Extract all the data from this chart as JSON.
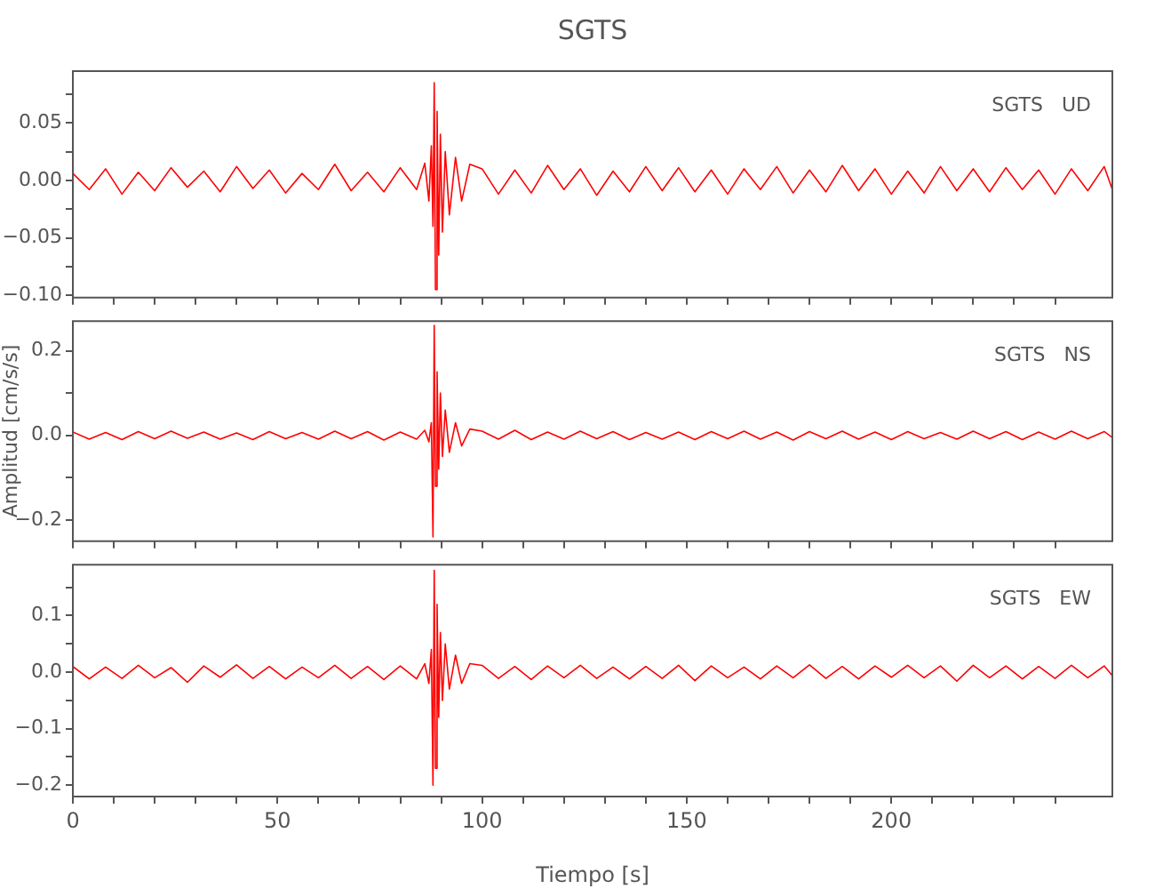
{
  "chart_data": [
    {
      "type": "line",
      "title": "SGTS",
      "annotations": [
        "SGTS   UD"
      ],
      "tick_labels": "y",
      "grid": false,
      "legend": false,
      "marker": "none",
      "line_style": "solid",
      "x": [
        0,
        4,
        8,
        12,
        16,
        20,
        24,
        28,
        32,
        36,
        40,
        44,
        48,
        52,
        56,
        60,
        64,
        68,
        72,
        76,
        80,
        84,
        86,
        87,
        87.6,
        88,
        88.3,
        88.6,
        89,
        89.4,
        89.8,
        90.3,
        91,
        92,
        93.5,
        95,
        97,
        100,
        104,
        108,
        112,
        116,
        120,
        124,
        128,
        132,
        136,
        140,
        144,
        148,
        152,
        156,
        160,
        164,
        168,
        172,
        176,
        180,
        184,
        188,
        192,
        196,
        200,
        204,
        208,
        212,
        216,
        220,
        224,
        228,
        232,
        236,
        240,
        244,
        248,
        252,
        254
      ],
      "xlim": [
        0,
        254
      ],
      "xticks": [
        0,
        {
          "value": 10,
          "label": null
        },
        {
          "value": 20,
          "label": null
        },
        {
          "value": 30,
          "label": null
        },
        {
          "value": 40,
          "label": null
        },
        50,
        {
          "value": 60,
          "label": null
        },
        {
          "value": 70,
          "label": null
        },
        {
          "value": 80,
          "label": null
        },
        {
          "value": 90,
          "label": null
        },
        100,
        {
          "value": 110,
          "label": null
        },
        {
          "value": 120,
          "label": null
        },
        {
          "value": 130,
          "label": null
        },
        {
          "value": 140,
          "label": null
        },
        150,
        {
          "value": 160,
          "label": null
        },
        {
          "value": 170,
          "label": null
        },
        {
          "value": 180,
          "label": null
        },
        {
          "value": 190,
          "label": null
        },
        200,
        {
          "value": 210,
          "label": null
        },
        {
          "value": 220,
          "label": null
        },
        {
          "value": 230,
          "label": null
        },
        {
          "value": 240,
          "label": null
        }
      ],
      "ylim": [
        -0.102,
        0.095
      ],
      "yticks": [
        {
          "value": -0.1,
          "label": "−0.10"
        },
        {
          "value": -0.075,
          "label": null
        },
        {
          "value": -0.05,
          "label": "−0.05"
        },
        {
          "value": -0.025,
          "label": null
        },
        {
          "value": 0,
          "label": "0.00"
        },
        {
          "value": 0.025,
          "label": null
        },
        {
          "value": 0.05,
          "label": "0.05"
        },
        {
          "value": 0.075,
          "label": null
        }
      ],
      "series": [
        {
          "color": "#ff0000",
          "values": [
            0.006,
            -0.008,
            0.01,
            -0.012,
            0.007,
            -0.009,
            0.011,
            -0.006,
            0.008,
            -0.01,
            0.012,
            -0.007,
            0.009,
            -0.011,
            0.006,
            -0.008,
            0.014,
            -0.009,
            0.007,
            -0.01,
            0.011,
            -0.008,
            0.015,
            -0.018,
            0.03,
            -0.04,
            0.085,
            -0.095,
            0.06,
            -0.065,
            0.04,
            -0.045,
            0.025,
            -0.03,
            0.02,
            -0.018,
            0.014,
            0.01,
            -0.012,
            0.009,
            -0.011,
            0.013,
            -0.008,
            0.01,
            -0.013,
            0.008,
            -0.01,
            0.012,
            -0.009,
            0.011,
            -0.01,
            0.009,
            -0.012,
            0.01,
            -0.008,
            0.012,
            -0.011,
            0.009,
            -0.01,
            0.013,
            -0.009,
            0.01,
            -0.012,
            0.008,
            -0.011,
            0.012,
            -0.009,
            0.01,
            -0.01,
            0.011,
            -0.008,
            0.009,
            -0.012,
            0.01,
            -0.009,
            0.012,
            -0.008
          ]
        }
      ]
    },
    {
      "type": "line",
      "ylabel": "Amplitud [cm/s/s]",
      "annotations": [
        "SGTS   NS"
      ],
      "tick_labels": "y",
      "grid": false,
      "legend": false,
      "marker": "none",
      "line_style": "solid",
      "x": [
        0,
        4,
        8,
        12,
        16,
        20,
        24,
        28,
        32,
        36,
        40,
        44,
        48,
        52,
        56,
        60,
        64,
        68,
        72,
        76,
        80,
        84,
        86,
        87,
        87.6,
        88,
        88.3,
        88.6,
        89,
        89.4,
        89.8,
        90.3,
        91,
        92,
        93.5,
        95,
        97,
        100,
        104,
        108,
        112,
        116,
        120,
        124,
        128,
        132,
        136,
        140,
        144,
        148,
        152,
        156,
        160,
        164,
        168,
        172,
        176,
        180,
        184,
        188,
        192,
        196,
        200,
        204,
        208,
        212,
        216,
        220,
        224,
        228,
        232,
        236,
        240,
        244,
        248,
        252,
        254
      ],
      "xlim": [
        0,
        254
      ],
      "xticks": [
        0,
        {
          "value": 10,
          "label": null
        },
        {
          "value": 20,
          "label": null
        },
        {
          "value": 30,
          "label": null
        },
        {
          "value": 40,
          "label": null
        },
        50,
        {
          "value": 60,
          "label": null
        },
        {
          "value": 70,
          "label": null
        },
        {
          "value": 80,
          "label": null
        },
        {
          "value": 90,
          "label": null
        },
        100,
        {
          "value": 110,
          "label": null
        },
        {
          "value": 120,
          "label": null
        },
        {
          "value": 130,
          "label": null
        },
        {
          "value": 140,
          "label": null
        },
        150,
        {
          "value": 160,
          "label": null
        },
        {
          "value": 170,
          "label": null
        },
        {
          "value": 180,
          "label": null
        },
        {
          "value": 190,
          "label": null
        },
        200,
        {
          "value": 210,
          "label": null
        },
        {
          "value": 220,
          "label": null
        },
        {
          "value": 230,
          "label": null
        },
        {
          "value": 240,
          "label": null
        }
      ],
      "ylim": [
        -0.25,
        0.27
      ],
      "yticks": [
        {
          "value": -0.2,
          "label": "−0.2"
        },
        {
          "value": -0.1,
          "label": null
        },
        {
          "value": 0,
          "label": "0.0"
        },
        {
          "value": 0.1,
          "label": null
        },
        {
          "value": 0.2,
          "label": "0.2"
        }
      ],
      "series": [
        {
          "color": "#ff0000",
          "values": [
            0.008,
            -0.009,
            0.007,
            -0.01,
            0.009,
            -0.008,
            0.01,
            -0.007,
            0.008,
            -0.009,
            0.006,
            -0.01,
            0.009,
            -0.008,
            0.007,
            -0.009,
            0.01,
            -0.008,
            0.009,
            -0.011,
            0.008,
            -0.009,
            0.012,
            -0.015,
            0.03,
            -0.24,
            0.26,
            -0.12,
            0.15,
            -0.08,
            0.1,
            -0.05,
            0.06,
            -0.04,
            0.03,
            -0.025,
            0.015,
            0.01,
            -0.009,
            0.012,
            -0.01,
            0.008,
            -0.009,
            0.01,
            -0.008,
            0.009,
            -0.01,
            0.007,
            -0.009,
            0.008,
            -0.01,
            0.009,
            -0.008,
            0.01,
            -0.009,
            0.008,
            -0.011,
            0.009,
            -0.008,
            0.01,
            -0.009,
            0.008,
            -0.01,
            0.009,
            -0.008,
            0.007,
            -0.009,
            0.01,
            -0.008,
            0.009,
            -0.01,
            0.008,
            -0.009,
            0.01,
            -0.008,
            0.009,
            -0.005
          ]
        }
      ]
    },
    {
      "type": "line",
      "xlabel": "Tiempo [s]",
      "annotations": [
        "SGTS   EW"
      ],
      "grid": false,
      "legend": false,
      "marker": "none",
      "line_style": "solid",
      "x": [
        0,
        4,
        8,
        12,
        16,
        20,
        24,
        28,
        32,
        36,
        40,
        44,
        48,
        52,
        56,
        60,
        64,
        68,
        72,
        76,
        80,
        84,
        86,
        87,
        87.6,
        88,
        88.3,
        88.6,
        89,
        89.4,
        89.8,
        90.3,
        91,
        92,
        93.5,
        95,
        97,
        100,
        104,
        108,
        112,
        116,
        120,
        124,
        128,
        132,
        136,
        140,
        144,
        148,
        152,
        156,
        160,
        164,
        168,
        172,
        176,
        180,
        184,
        188,
        192,
        196,
        200,
        204,
        208,
        212,
        216,
        220,
        224,
        228,
        232,
        236,
        240,
        244,
        248,
        252,
        254
      ],
      "xlim": [
        0,
        254
      ],
      "xticks": [
        0,
        {
          "value": 10,
          "label": null
        },
        {
          "value": 20,
          "label": null
        },
        {
          "value": 30,
          "label": null
        },
        {
          "value": 40,
          "label": null
        },
        50,
        {
          "value": 60,
          "label": null
        },
        {
          "value": 70,
          "label": null
        },
        {
          "value": 80,
          "label": null
        },
        {
          "value": 90,
          "label": null
        },
        100,
        {
          "value": 110,
          "label": null
        },
        {
          "value": 120,
          "label": null
        },
        {
          "value": 130,
          "label": null
        },
        {
          "value": 140,
          "label": null
        },
        150,
        {
          "value": 160,
          "label": null
        },
        {
          "value": 170,
          "label": null
        },
        {
          "value": 180,
          "label": null
        },
        {
          "value": 190,
          "label": null
        },
        200,
        {
          "value": 210,
          "label": null
        },
        {
          "value": 220,
          "label": null
        },
        {
          "value": 230,
          "label": null
        },
        {
          "value": 240,
          "label": null
        }
      ],
      "ylim": [
        -0.22,
        0.19
      ],
      "yticks": [
        {
          "value": -0.2,
          "label": "−0.2"
        },
        {
          "value": -0.15,
          "label": null
        },
        {
          "value": -0.1,
          "label": "−0.1"
        },
        {
          "value": -0.05,
          "label": null
        },
        {
          "value": 0,
          "label": "0.0"
        },
        {
          "value": 0.05,
          "label": null
        },
        {
          "value": 0.1,
          "label": "0.1"
        },
        {
          "value": 0.15,
          "label": null
        }
      ],
      "series": [
        {
          "color": "#ff0000",
          "values": [
            0.01,
            -0.012,
            0.009,
            -0.011,
            0.012,
            -0.01,
            0.008,
            -0.018,
            0.011,
            -0.009,
            0.013,
            -0.011,
            0.01,
            -0.012,
            0.009,
            -0.01,
            0.012,
            -0.011,
            0.01,
            -0.013,
            0.011,
            -0.012,
            0.015,
            -0.02,
            0.04,
            -0.2,
            0.18,
            -0.17,
            0.12,
            -0.08,
            0.07,
            -0.05,
            0.05,
            -0.03,
            0.03,
            -0.02,
            0.015,
            0.012,
            -0.011,
            0.01,
            -0.013,
            0.011,
            -0.01,
            0.012,
            -0.011,
            0.009,
            -0.012,
            0.01,
            -0.011,
            0.012,
            -0.015,
            0.011,
            -0.01,
            0.009,
            -0.012,
            0.011,
            -0.01,
            0.013,
            -0.011,
            0.01,
            -0.012,
            0.011,
            -0.009,
            0.012,
            -0.01,
            0.011,
            -0.016,
            0.012,
            -0.01,
            0.011,
            -0.012,
            0.01,
            -0.011,
            0.012,
            -0.01,
            0.011,
            -0.006
          ]
        }
      ]
    }
  ]
}
